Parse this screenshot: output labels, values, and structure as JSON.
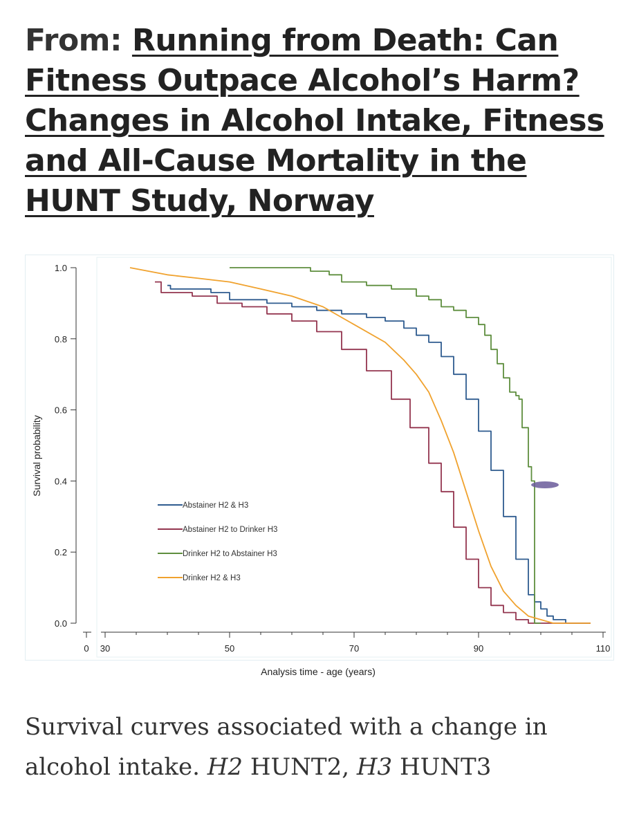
{
  "header": {
    "prefix": "From: ",
    "article_title": "Running from Death: Can Fitness Outpace Alcohol’s Harm? Changes in Alcohol Intake, Fitness and All-Cause Mortality in the HUNT Study, Norway"
  },
  "caption": {
    "text": "Survival curves associated with a change in alcohol intake.",
    "abbrev1_italic": "H2",
    "abbrev1_text": "HUNT2,",
    "abbrev2_italic": "H3",
    "abbrev2_text": "HUNT3"
  },
  "colors": {
    "abstainer_both": "#2e5b8f",
    "abstainer_to_drinker": "#93354f",
    "drinker_to_abstainer": "#5e8e3e",
    "drinker_both": "#f0a22e"
  },
  "chart_data": {
    "type": "line",
    "title": "",
    "xlabel": "Analysis time - age (years)",
    "ylabel": "Survival probability",
    "xlim": [
      30,
      110
    ],
    "ylim": [
      0,
      1
    ],
    "x_ticks": [
      "0",
      "30",
      "50",
      "70",
      "90",
      "110"
    ],
    "y_ticks": [
      "0.0",
      "0.2",
      "0.4",
      "0.6",
      "0.8",
      "1.0"
    ],
    "legend_position": "center-left",
    "series": [
      {
        "name": "Abstainer H2 & H3",
        "color_key": "abstainer_both",
        "step": true,
        "points": [
          [
            40,
            0.95
          ],
          [
            40.5,
            0.94
          ],
          [
            43,
            0.94
          ],
          [
            47,
            0.93
          ],
          [
            50,
            0.91
          ],
          [
            52,
            0.91
          ],
          [
            56,
            0.9
          ],
          [
            60,
            0.89
          ],
          [
            64,
            0.88
          ],
          [
            68,
            0.87
          ],
          [
            72,
            0.86
          ],
          [
            75,
            0.85
          ],
          [
            78,
            0.83
          ],
          [
            80,
            0.81
          ],
          [
            82,
            0.79
          ],
          [
            84,
            0.75
          ],
          [
            86,
            0.7
          ],
          [
            88,
            0.63
          ],
          [
            90,
            0.54
          ],
          [
            92,
            0.43
          ],
          [
            94,
            0.3
          ],
          [
            96,
            0.18
          ],
          [
            98,
            0.08
          ],
          [
            99,
            0.06
          ],
          [
            100,
            0.04
          ],
          [
            101,
            0.02
          ],
          [
            102,
            0.01
          ],
          [
            104,
            0.0
          ],
          [
            108,
            0.0
          ]
        ]
      },
      {
        "name": "Abstainer H2 to Drinker H3",
        "color_key": "abstainer_to_drinker",
        "step": true,
        "points": [
          [
            38,
            0.96
          ],
          [
            39,
            0.93
          ],
          [
            44,
            0.92
          ],
          [
            48,
            0.9
          ],
          [
            52,
            0.89
          ],
          [
            56,
            0.87
          ],
          [
            60,
            0.85
          ],
          [
            64,
            0.82
          ],
          [
            68,
            0.77
          ],
          [
            72,
            0.71
          ],
          [
            76,
            0.63
          ],
          [
            79,
            0.55
          ],
          [
            82,
            0.45
          ],
          [
            84,
            0.37
          ],
          [
            86,
            0.27
          ],
          [
            88,
            0.18
          ],
          [
            90,
            0.1
          ],
          [
            92,
            0.05
          ],
          [
            94,
            0.03
          ],
          [
            96,
            0.01
          ],
          [
            98,
            0.0
          ],
          [
            108,
            0.0
          ]
        ]
      },
      {
        "name": "Drinker H2 to Abstainer H3",
        "color_key": "drinker_to_abstainer",
        "step": true,
        "points": [
          [
            50,
            1.0
          ],
          [
            62,
            1.0
          ],
          [
            63,
            0.99
          ],
          [
            66,
            0.98
          ],
          [
            68,
            0.96
          ],
          [
            72,
            0.95
          ],
          [
            76,
            0.94
          ],
          [
            80,
            0.92
          ],
          [
            82,
            0.91
          ],
          [
            84,
            0.89
          ],
          [
            86,
            0.88
          ],
          [
            88,
            0.86
          ],
          [
            90,
            0.84
          ],
          [
            91,
            0.81
          ],
          [
            92,
            0.77
          ],
          [
            93,
            0.73
          ],
          [
            94,
            0.69
          ],
          [
            95,
            0.65
          ],
          [
            96,
            0.64
          ],
          [
            96.5,
            0.63
          ],
          [
            97,
            0.55
          ],
          [
            98,
            0.44
          ],
          [
            98.5,
            0.4
          ],
          [
            99,
            0.0
          ],
          [
            100,
            0.0
          ]
        ]
      },
      {
        "name": "Drinker H2 & H3",
        "color_key": "drinker_both",
        "step": false,
        "points": [
          [
            34,
            1.0
          ],
          [
            40,
            0.98
          ],
          [
            45,
            0.97
          ],
          [
            50,
            0.96
          ],
          [
            55,
            0.94
          ],
          [
            60,
            0.92
          ],
          [
            65,
            0.89
          ],
          [
            70,
            0.84
          ],
          [
            75,
            0.79
          ],
          [
            78,
            0.74
          ],
          [
            80,
            0.7
          ],
          [
            82,
            0.65
          ],
          [
            84,
            0.57
          ],
          [
            86,
            0.48
          ],
          [
            88,
            0.37
          ],
          [
            90,
            0.26
          ],
          [
            92,
            0.16
          ],
          [
            94,
            0.09
          ],
          [
            96,
            0.05
          ],
          [
            98,
            0.02
          ],
          [
            100,
            0.01
          ],
          [
            102,
            0.0
          ],
          [
            108,
            0.0
          ]
        ]
      }
    ]
  }
}
